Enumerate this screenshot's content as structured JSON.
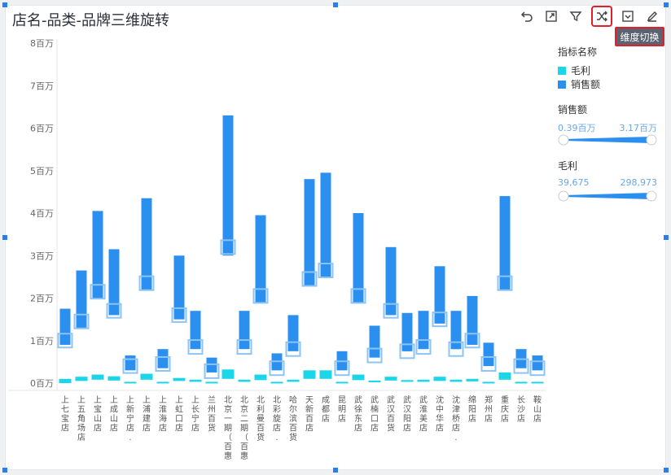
{
  "title": "店名-品类-品牌三维旋转",
  "toolbar": [
    {
      "name": "undo-icon",
      "active": false
    },
    {
      "name": "expand-icon",
      "active": false
    },
    {
      "name": "filter-icon",
      "active": false
    },
    {
      "name": "shuffle-icon",
      "active": true
    },
    {
      "name": "dropdown-icon",
      "active": false
    },
    {
      "name": "edit-icon",
      "active": false
    }
  ],
  "tooltip": "维度切换",
  "legend": {
    "title": "指标名称",
    "items": [
      {
        "label": "毛利",
        "color": "#1bd6e8"
      },
      {
        "label": "销售额",
        "color": "#2b8ff0"
      }
    ]
  },
  "filters": [
    {
      "label": "销售额",
      "min": "0.39百万",
      "max": "3.17百万"
    },
    {
      "label": "毛利",
      "min": "39,675",
      "max": "298,973"
    }
  ],
  "colors": {
    "sales": "#2b8ff0",
    "profit": "#1bd6e8",
    "marker": "#8cc4f5",
    "axis": "#666666"
  },
  "chart_data": {
    "type": "bar",
    "ylabel": "",
    "ylim": [
      0,
      8
    ],
    "yticks": [
      "0百万",
      "1百万",
      "2百万",
      "3百万",
      "4百万",
      "5百万",
      "6百万",
      "7百万",
      "8百万"
    ],
    "categories": [
      "上七宝店",
      "上五角场店",
      "上宝山店",
      "上成山店",
      "上新宁店.",
      "上浦建店",
      "上淮海店",
      "上虹口店",
      "上长宁店",
      "兰州百货",
      "北京一期（百惠",
      "北京二期（百惠",
      "北利曼百货",
      "北彩旋店.",
      "哈尔滨百货",
      "天新百店",
      "成都店",
      "昆明店",
      "武徐东店",
      "武楠口店",
      "武汉百货",
      "武汉阳店",
      "武淮美店",
      "沈中华店",
      "沈津桥店.",
      "绵阳店",
      "郑州店",
      "重庆店",
      "长沙店",
      "鞍山店"
    ],
    "series": [
      {
        "name": "销售额",
        "low": [
          0.9,
          1.3,
          2.0,
          1.6,
          0.3,
          2.2,
          0.35,
          1.5,
          0.8,
          0.25,
          3.0,
          0.8,
          1.9,
          0.3,
          0.75,
          2.3,
          2.5,
          0.3,
          1.9,
          0.6,
          1.6,
          0.75,
          0.8,
          1.4,
          0.8,
          0.9,
          0.4,
          2.2,
          0.35,
          0.3
        ],
        "high": [
          1.75,
          2.65,
          4.05,
          3.15,
          0.65,
          4.35,
          0.8,
          3.0,
          1.7,
          0.6,
          6.3,
          1.7,
          3.95,
          0.7,
          1.6,
          4.8,
          4.95,
          0.75,
          4.0,
          1.35,
          3.2,
          1.65,
          1.7,
          2.75,
          1.7,
          2.05,
          0.95,
          4.4,
          0.8,
          0.65
        ]
      },
      {
        "name": "毛利",
        "low": [
          0.0,
          0.05,
          0.08,
          0.06,
          0.01,
          0.08,
          0.01,
          0.05,
          0.03,
          0.01,
          0.1,
          0.03,
          0.07,
          0.01,
          0.03,
          0.1,
          0.1,
          0.01,
          0.07,
          0.02,
          0.06,
          0.03,
          0.03,
          0.05,
          0.03,
          0.04,
          0.01,
          0.08,
          0.01,
          0.01
        ],
        "high": [
          0.1,
          0.15,
          0.2,
          0.16,
          0.03,
          0.22,
          0.03,
          0.12,
          0.08,
          0.03,
          0.32,
          0.08,
          0.2,
          0.03,
          0.08,
          0.3,
          0.3,
          0.03,
          0.2,
          0.06,
          0.15,
          0.07,
          0.08,
          0.15,
          0.08,
          0.1,
          0.03,
          0.25,
          0.03,
          0.03
        ]
      }
    ],
    "markers": [
      1.0,
      1.45,
      2.15,
      1.7,
      0.4,
      2.35,
      0.45,
      1.6,
      0.85,
      0.28,
      3.2,
      0.85,
      2.05,
      0.35,
      0.8,
      2.45,
      2.65,
      0.35,
      2.05,
      0.65,
      1.7,
      0.75,
      0.85,
      1.5,
      0.8,
      1.0,
      0.45,
      2.35,
      0.4,
      0.35
    ]
  }
}
